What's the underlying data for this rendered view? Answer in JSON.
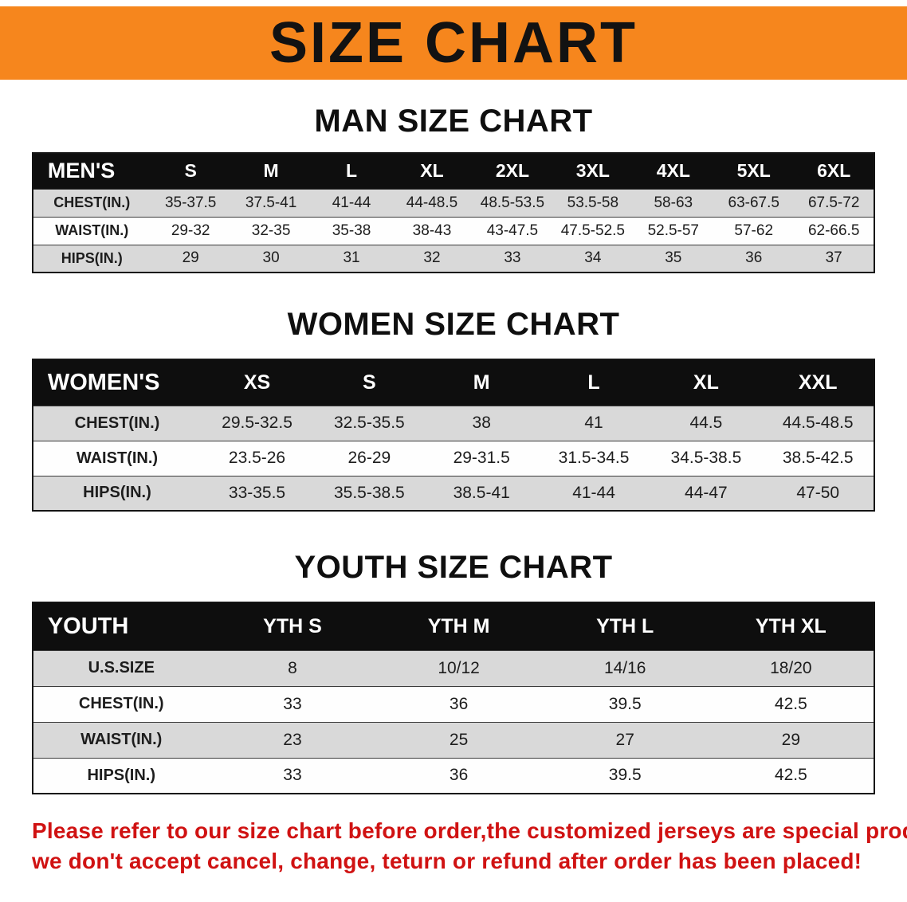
{
  "banner": {
    "title": "SIZE CHART",
    "bg_color": "#f6861d",
    "text_color": "#121212"
  },
  "sections": [
    {
      "heading": "MAN SIZE CHART",
      "table": {
        "label": "MEN'S",
        "columns": [
          "S",
          "M",
          "L",
          "XL",
          "2XL",
          "3XL",
          "4XL",
          "5XL",
          "6XL"
        ],
        "rows": [
          {
            "label": "CHEST(IN.)",
            "values": [
              "35-37.5",
              "37.5-41",
              "41-44",
              "44-48.5",
              "48.5-53.5",
              "53.5-58",
              "58-63",
              "63-67.5",
              "67.5-72"
            ]
          },
          {
            "label": "WAIST(IN.)",
            "values": [
              "29-32",
              "32-35",
              "35-38",
              "38-43",
              "43-47.5",
              "47.5-52.5",
              "52.5-57",
              "57-62",
              "62-66.5"
            ]
          },
          {
            "label": "HIPS(IN.)",
            "values": [
              "29",
              "30",
              "31",
              "32",
              "33",
              "34",
              "35",
              "36",
              "37"
            ]
          }
        ]
      }
    },
    {
      "heading": "WOMEN SIZE CHART",
      "table": {
        "label": "WOMEN'S",
        "columns": [
          "XS",
          "S",
          "M",
          "L",
          "XL",
          "XXL"
        ],
        "rows": [
          {
            "label": "CHEST(IN.)",
            "values": [
              "29.5-32.5",
              "32.5-35.5",
              "38",
              "41",
              "44.5",
              "44.5-48.5"
            ]
          },
          {
            "label": "WAIST(IN.)",
            "values": [
              "23.5-26",
              "26-29",
              "29-31.5",
              "31.5-34.5",
              "34.5-38.5",
              "38.5-42.5"
            ]
          },
          {
            "label": "HIPS(IN.)",
            "values": [
              "33-35.5",
              "35.5-38.5",
              "38.5-41",
              "41-44",
              "44-47",
              "47-50"
            ]
          }
        ]
      }
    },
    {
      "heading": "YOUTH SIZE CHART",
      "table": {
        "label": "YOUTH",
        "columns": [
          "YTH S",
          "YTH M",
          "YTH L",
          "YTH XL"
        ],
        "rows": [
          {
            "label": "U.S.SIZE",
            "values": [
              "8",
              "10/12",
              "14/16",
              "18/20"
            ]
          },
          {
            "label": "CHEST(IN.)",
            "values": [
              "33",
              "36",
              "39.5",
              "42.5"
            ]
          },
          {
            "label": "WAIST(IN.)",
            "values": [
              "23",
              "25",
              "27",
              "29"
            ]
          },
          {
            "label": "HIPS(IN.)",
            "values": [
              "33",
              "36",
              "39.5",
              "42.5"
            ]
          }
        ]
      }
    }
  ],
  "footer": {
    "lines": [
      "Please refer to our size chart before order,the customized jerseys are special products,",
      "we don't accept cancel, change, teturn or refund after order has been placed!"
    ],
    "text_color": "#d01212"
  }
}
